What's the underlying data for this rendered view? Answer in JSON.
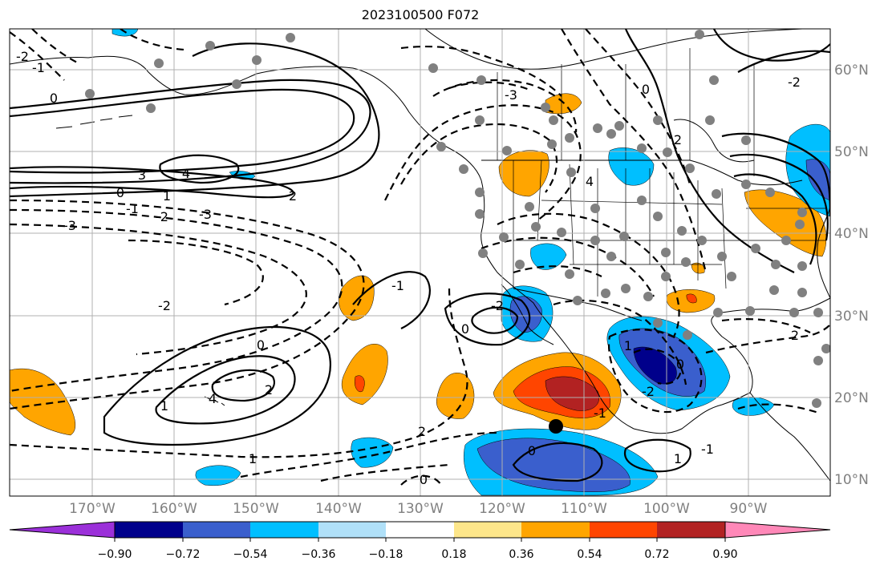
{
  "title": "2023100500 F072",
  "map": {
    "lon_labels": [
      "170°W",
      "160°W",
      "150°W",
      "140°W",
      "130°W",
      "120°W",
      "110°W",
      "100°W",
      "90°W"
    ],
    "lat_labels": [
      "60°N",
      "50°N",
      "40°N",
      "30°N",
      "20°N",
      "10°N"
    ]
  },
  "colorbar": {
    "ticks": [
      "−0.90",
      "−0.72",
      "−0.54",
      "−0.36",
      "−0.18",
      "0.18",
      "0.36",
      "0.54",
      "0.72",
      "0.90"
    ],
    "colors": [
      "#9b30d9",
      "#00008b",
      "#3a5fcd",
      "#00bfff",
      "#b0e0f8",
      "#ffffff",
      "#fde68a",
      "#ffa500",
      "#ff4500",
      "#b22222",
      "#ff88b8"
    ]
  },
  "contour_labels": [
    "0",
    "-1",
    "-2",
    "-3",
    "1",
    "2",
    "3",
    "4",
    "0",
    "-1",
    "-2",
    "-3",
    "1",
    "2",
    "4",
    "0",
    "-2",
    "1",
    "0",
    "2",
    "-1",
    "-2",
    "0",
    "1",
    "0",
    "-2",
    "-1",
    "0",
    "1",
    "-1",
    "2",
    "-3",
    "4",
    "0",
    "2",
    "-2"
  ],
  "colors": {
    "land_gray": "#808080",
    "storm_marker": "#000000"
  }
}
